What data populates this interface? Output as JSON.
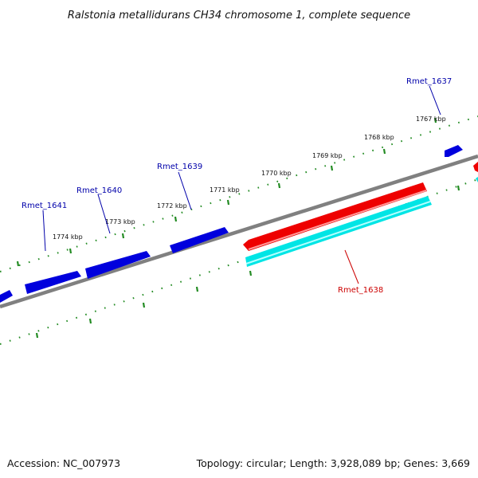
{
  "title": "Ralstonia metallidurans CH34 chromosome 1, complete sequence",
  "footer": {
    "accession": "Accession: NC_007973",
    "summary": "Topology: circular; Length: 3,928,089 bp; Genes: 3,669"
  },
  "colors": {
    "backbone": "#808080",
    "tick": "#228b22",
    "forward_gene": "#0000dd",
    "reverse_gene": "#ee0000",
    "reverse_gene_light": "#ff9999",
    "cds": "#00e5e5",
    "cds_light": "#b3ffff",
    "forward_label": "#0000aa",
    "reverse_label": "#cc0000"
  },
  "kbp_labels": [
    {
      "text": "1767 kbp"
    },
    {
      "text": "1768 kbp"
    },
    {
      "text": "1769 kbp"
    },
    {
      "text": "1770 kbp"
    },
    {
      "text": "1771 kbp"
    },
    {
      "text": "1772 kbp"
    },
    {
      "text": "1773 kbp"
    },
    {
      "text": "1774 kbp"
    }
  ],
  "gene_labels": [
    {
      "text": "Rmet_1637",
      "strand": "forward"
    },
    {
      "text": "Rmet_1638",
      "strand": "reverse"
    },
    {
      "text": "Rmet_1639",
      "strand": "forward"
    },
    {
      "text": "Rmet_1640",
      "strand": "forward"
    },
    {
      "text": "Rmet_1641",
      "strand": "forward"
    }
  ]
}
